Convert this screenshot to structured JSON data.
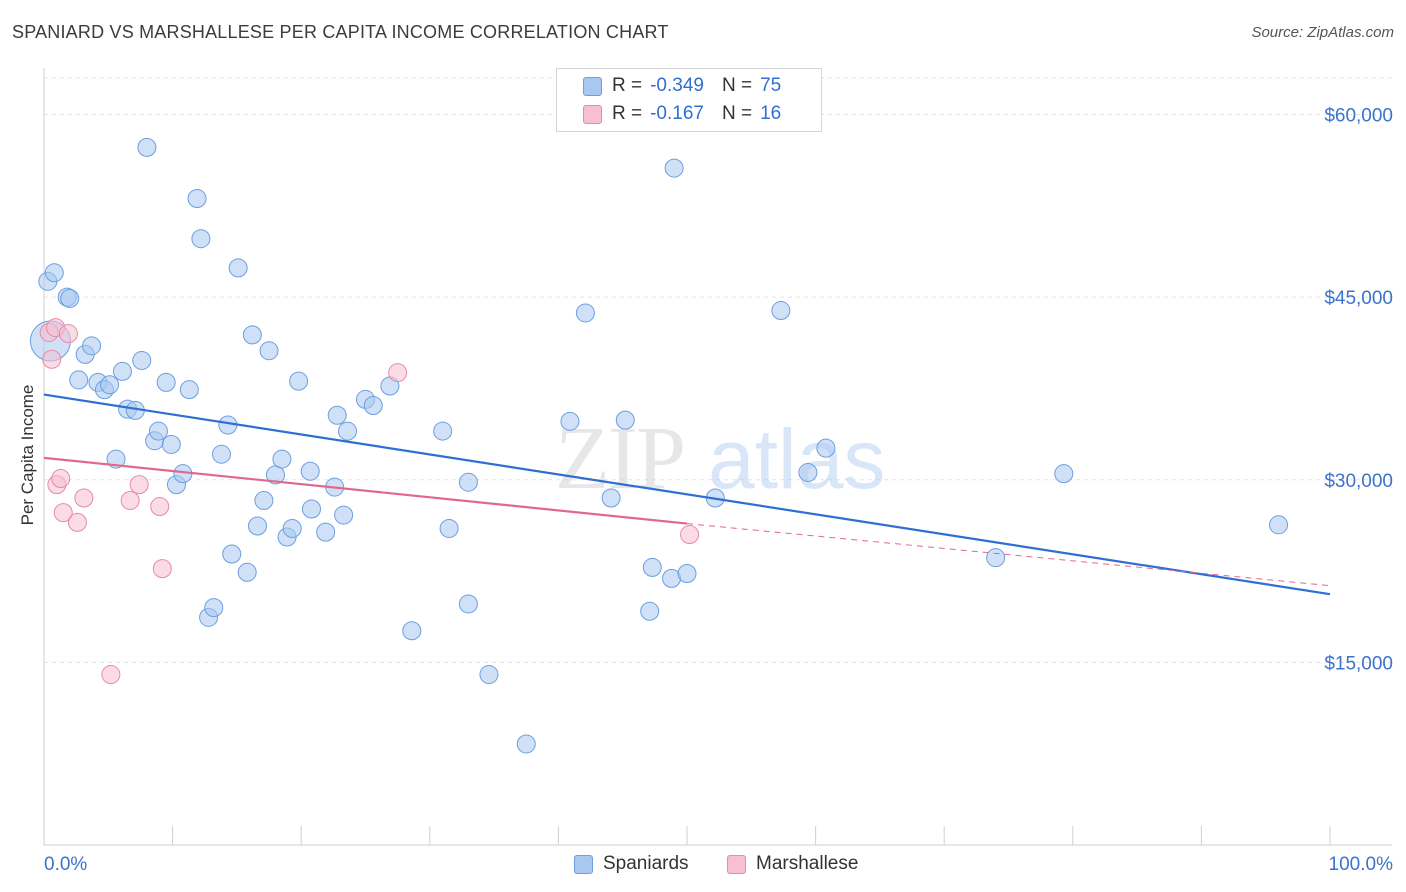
{
  "title": "SPANIARD VS MARSHALLESE PER CAPITA INCOME CORRELATION CHART",
  "source": "Source: ZipAtlas.com",
  "watermark": "ZIPatlas",
  "colors": {
    "spaniards_fill": "#a9c8f0",
    "spaniards_stroke": "#6a9fe0",
    "spaniards_line": "#2d6fd2",
    "marshallese_fill": "#f7bfd0",
    "marshallese_stroke": "#e68aa8",
    "marshallese_line": "#e0678f",
    "tick_label": "#3a73cc",
    "grid": "#e3e3e3"
  },
  "legend": {
    "rows": [
      {
        "r_label": "R =",
        "r_value": "-0.349",
        "n_label": "N =",
        "n_value": "75"
      },
      {
        "r_label": "R =",
        "r_value": "-0.167",
        "n_label": "N =",
        "n_value": "16"
      }
    ]
  },
  "bottom_legend": {
    "spaniards": "Spaniards",
    "marshallese": "Marshallese"
  },
  "chart_data": {
    "type": "scatter",
    "title": "SPANIARD VS MARSHALLESE PER CAPITA INCOME CORRELATION CHART",
    "xlabel": "",
    "ylabel": "Per Capita Income",
    "xlim": [
      0,
      100
    ],
    "ylim": [
      0,
      63000
    ],
    "x_tick_labels": [
      "0.0%",
      "100.0%"
    ],
    "y_ticks": [
      15000,
      30000,
      45000,
      60000
    ],
    "y_tick_labels": [
      "$15,000",
      "$30,000",
      "$45,000",
      "$60,000"
    ],
    "grid": "horizontal dashed",
    "legend_position": "top-center",
    "series": [
      {
        "name": "Spaniards",
        "r": -0.349,
        "n": 75,
        "trend": {
          "x": [
            0,
            100
          ],
          "y": [
            37000,
            20600
          ]
        },
        "points": [
          [
            0.3,
            46300
          ],
          [
            0.8,
            47000
          ],
          [
            1.8,
            45000
          ],
          [
            2.0,
            44900
          ],
          [
            2.7,
            38200
          ],
          [
            3.2,
            40300
          ],
          [
            3.7,
            41000
          ],
          [
            4.2,
            38000
          ],
          [
            4.7,
            37400
          ],
          [
            5.1,
            37800
          ],
          [
            5.6,
            31700
          ],
          [
            6.1,
            38900
          ],
          [
            6.5,
            35800
          ],
          [
            7.1,
            35700
          ],
          [
            7.6,
            39800
          ],
          [
            8.0,
            57300
          ],
          [
            8.6,
            33200
          ],
          [
            8.9,
            34000
          ],
          [
            9.5,
            38000
          ],
          [
            9.9,
            32900
          ],
          [
            10.3,
            29600
          ],
          [
            10.8,
            30500
          ],
          [
            11.3,
            37400
          ],
          [
            11.9,
            53100
          ],
          [
            12.2,
            49800
          ],
          [
            12.8,
            18700
          ],
          [
            13.2,
            19500
          ],
          [
            13.8,
            32100
          ],
          [
            14.3,
            34500
          ],
          [
            14.6,
            23900
          ],
          [
            15.1,
            47400
          ],
          [
            15.8,
            22400
          ],
          [
            16.2,
            41900
          ],
          [
            16.6,
            26200
          ],
          [
            17.1,
            28300
          ],
          [
            17.5,
            40600
          ],
          [
            18.0,
            30400
          ],
          [
            18.5,
            31700
          ],
          [
            18.9,
            25300
          ],
          [
            19.3,
            26000
          ],
          [
            19.8,
            38100
          ],
          [
            20.7,
            30700
          ],
          [
            20.8,
            27600
          ],
          [
            21.9,
            25700
          ],
          [
            22.6,
            29400
          ],
          [
            22.8,
            35300
          ],
          [
            23.3,
            27100
          ],
          [
            23.6,
            34000
          ],
          [
            25.0,
            36600
          ],
          [
            25.6,
            36100
          ],
          [
            26.9,
            37700
          ],
          [
            28.6,
            17600
          ],
          [
            31.0,
            34000
          ],
          [
            31.5,
            26000
          ],
          [
            33.0,
            29800
          ],
          [
            33.0,
            19800
          ],
          [
            34.6,
            14000
          ],
          [
            37.5,
            8300
          ],
          [
            40.9,
            34800
          ],
          [
            42.1,
            43700
          ],
          [
            44.1,
            28500
          ],
          [
            45.2,
            34900
          ],
          [
            47.1,
            19200
          ],
          [
            47.3,
            22800
          ],
          [
            48.8,
            21900
          ],
          [
            49.0,
            55600
          ],
          [
            50.0,
            22300
          ],
          [
            52.2,
            28500
          ],
          [
            57.3,
            43900
          ],
          [
            59.4,
            30600
          ],
          [
            60.8,
            32600
          ],
          [
            74.0,
            23600
          ],
          [
            79.3,
            30500
          ],
          [
            96.0,
            26300
          ],
          [
            0.5,
            41400
          ]
        ]
      },
      {
        "name": "Marshallese",
        "r": -0.167,
        "n": 16,
        "trend": {
          "x": [
            0,
            50
          ],
          "y": [
            31800,
            26400
          ]
        },
        "trend_dashed_extension": {
          "x": [
            50,
            100
          ],
          "y": [
            26400,
            21300
          ]
        },
        "points": [
          [
            0.4,
            42100
          ],
          [
            0.6,
            39900
          ],
          [
            0.9,
            42500
          ],
          [
            1.0,
            29600
          ],
          [
            1.3,
            30100
          ],
          [
            1.5,
            27300
          ],
          [
            1.9,
            42000
          ],
          [
            2.6,
            26500
          ],
          [
            3.1,
            28500
          ],
          [
            5.2,
            14000
          ],
          [
            6.7,
            28300
          ],
          [
            7.4,
            29600
          ],
          [
            9.0,
            27800
          ],
          [
            9.2,
            22700
          ],
          [
            27.5,
            38800
          ],
          [
            50.2,
            25500
          ]
        ]
      }
    ]
  }
}
